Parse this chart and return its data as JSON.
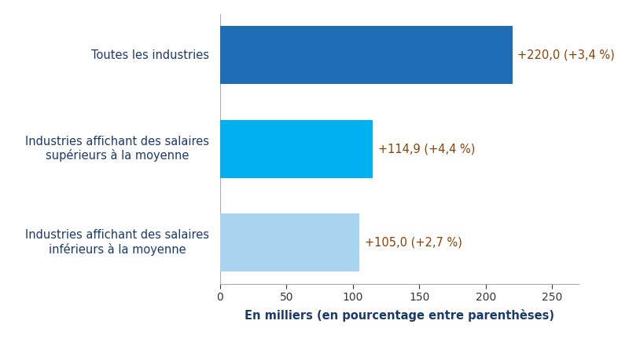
{
  "categories": [
    "Industries affichant des salaires\ninférieurs à la moyenne",
    "Industries affichant des salaires\nsupérieurs à la moyenne",
    "Toutes les industries"
  ],
  "values": [
    105.0,
    114.9,
    220.0
  ],
  "bar_colors": [
    "#a8d4f0",
    "#00b0f0",
    "#1f6eb5"
  ],
  "annotations": [
    "+105,0 (+2,7 %)",
    "+114,9 (+4,4 %)",
    "+220,0 (+3,4 %)"
  ],
  "xlabel": "En milliers (en pourcentage entre parenthèses)",
  "xlim": [
    0,
    270
  ],
  "xticks": [
    0,
    50,
    100,
    150,
    200,
    250
  ],
  "label_color": "#1a3a6b",
  "annotation_color": "#8b4000",
  "background_color": "#ffffff",
  "label_fontsize": 10.5,
  "annotation_fontsize": 10.5,
  "xlabel_fontsize": 10.5,
  "tick_fontsize": 10,
  "bar_height": 0.62
}
